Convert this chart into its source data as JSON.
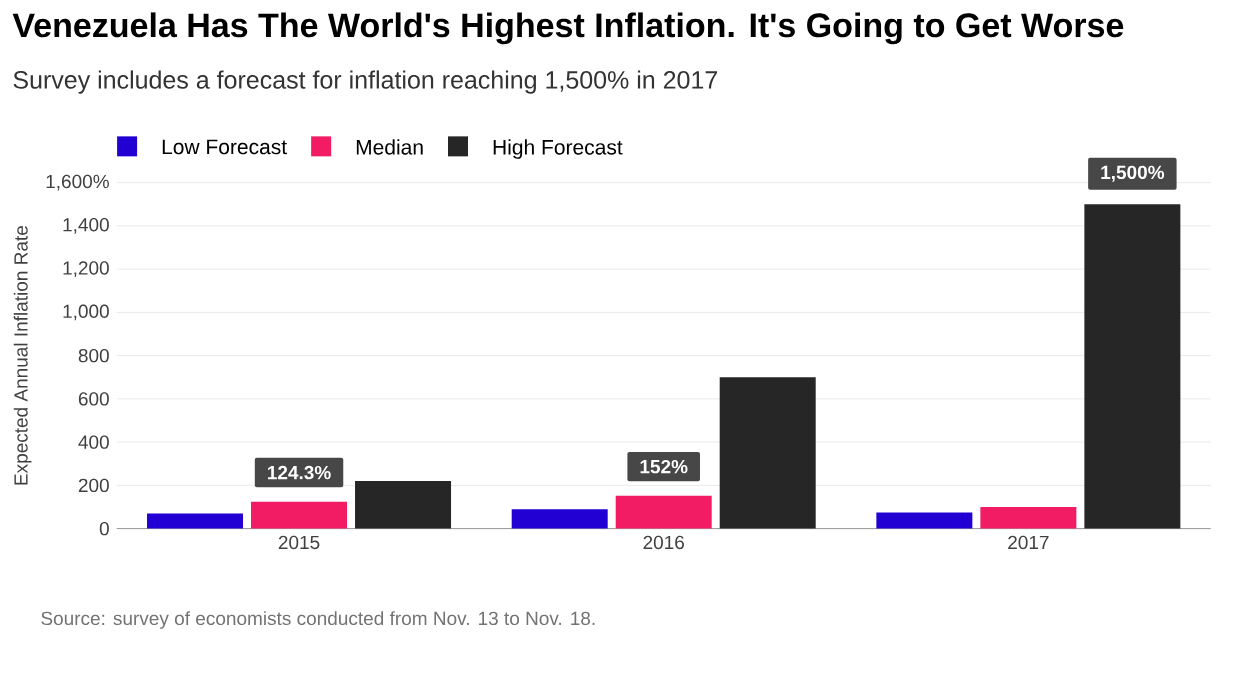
{
  "chart_data": {
    "type": "bar",
    "title": "Venezuela Has The World's Highest Inflation. It's Going to Get Worse",
    "subtitle": "Survey includes a forecast for inflation reaching 1,500% in 2017",
    "ylabel": "Expected Annual Inflation Rate",
    "categories": [
      "2015",
      "2016",
      "2017"
    ],
    "series": [
      {
        "name": "Low Forecast",
        "color": "#2200d4",
        "values": [
          70,
          90,
          75
        ]
      },
      {
        "name": "Median",
        "color": "#f21c64",
        "values": [
          124.3,
          152,
          100
        ],
        "value_labels": [
          "124.3%",
          "152%",
          null
        ]
      },
      {
        "name": "High Forecast",
        "color": "#262626",
        "values": [
          220,
          700,
          1500
        ],
        "value_labels": [
          null,
          null,
          "1,500%"
        ]
      }
    ],
    "ylim": [
      0,
      1600
    ],
    "yticks": [
      0,
      200,
      400,
      600,
      800,
      {
        "value": 1000,
        "label": "1,000"
      },
      {
        "value": 1200,
        "label": "1,200"
      },
      {
        "value": 1400,
        "label": "1,400"
      },
      {
        "value": 1600,
        "label": "1,600%"
      }
    ],
    "grid": "y",
    "legend": "top left",
    "annotations": [
      "Source: survey of economists conducted from Nov. 13 to Nov. 18."
    ]
  }
}
